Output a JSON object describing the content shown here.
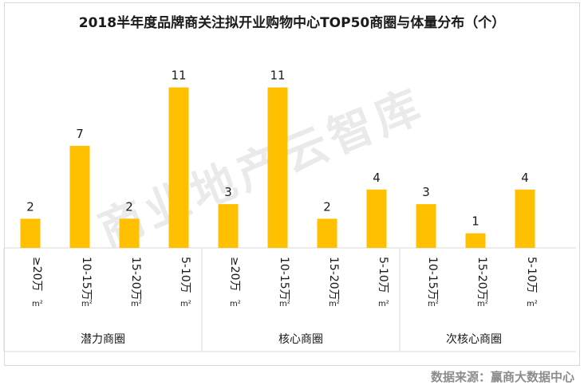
{
  "title": "2018半年度品牌商关注拟开业购物中心TOP50商圈与体量分布（个）",
  "source": "数据来源：赢商大数据中心",
  "watermark": "商业地产云智库",
  "colors": {
    "bar": "#FFC000",
    "grid": "#d9d9d9",
    "text": "#1a1a1a"
  },
  "chart_data": {
    "type": "bar",
    "title": "2018半年度品牌商关注拟开业购物中心TOP50商圈与体量分布（个）",
    "unit_sup": "²",
    "groups": [
      {
        "name": "潜力商圈",
        "bars": [
          {
            "label_main": "≥20万",
            "label_unit": "m",
            "value": 2
          },
          {
            "label_main": "10-15万",
            "label_unit": "m",
            "value": 7
          },
          {
            "label_main": "15-20万",
            "label_unit": "m",
            "value": 2
          },
          {
            "label_main": "5-10万",
            "label_unit": "m",
            "value": 11
          }
        ]
      },
      {
        "name": "核心商圈",
        "bars": [
          {
            "label_main": "≥20万",
            "label_unit": "m",
            "value": 3
          },
          {
            "label_main": "10-15万",
            "label_unit": "m",
            "value": 11
          },
          {
            "label_main": "15-20万",
            "label_unit": "m",
            "value": 2
          },
          {
            "label_main": "5-10万",
            "label_unit": "m",
            "value": 4
          }
        ]
      },
      {
        "name": "次核心商圈",
        "bars": [
          {
            "label_main": "10-15万",
            "label_unit": "m",
            "value": 3
          },
          {
            "label_main": "15-20万",
            "label_unit": "m",
            "value": 1
          },
          {
            "label_main": "5-10万",
            "label_unit": "m",
            "value": 4
          }
        ]
      }
    ],
    "ylim": [
      0,
      11
    ]
  }
}
